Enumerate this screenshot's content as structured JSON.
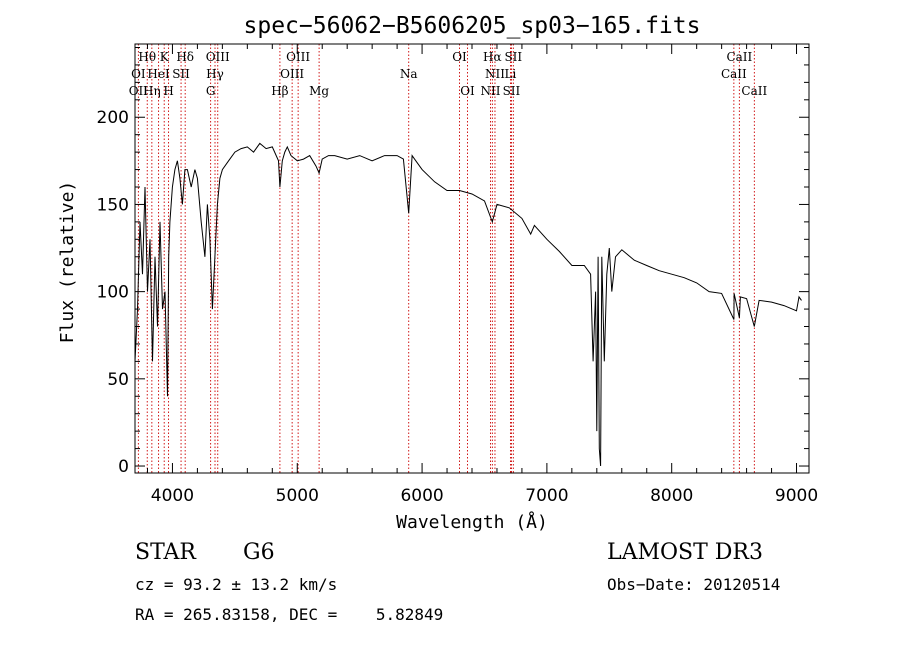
{
  "chart_data": {
    "type": "line",
    "title": "spec−56062−B5606205_sp03−165.fits",
    "xlabel": "Wavelength (Å)",
    "ylabel": "Flux (relative)",
    "xlim": [
      3700,
      9100
    ],
    "ylim": [
      -4,
      242
    ],
    "xticks": [
      4000,
      5000,
      6000,
      7000,
      8000,
      9000
    ],
    "yticks": [
      0,
      50,
      100,
      150,
      200
    ],
    "series": [
      {
        "name": "flux",
        "x": [
          3700,
          3720,
          3740,
          3760,
          3780,
          3800,
          3820,
          3840,
          3860,
          3880,
          3900,
          3920,
          3940,
          3960,
          3970,
          3980,
          4000,
          4020,
          4040,
          4060,
          4080,
          4100,
          4120,
          4150,
          4180,
          4200,
          4230,
          4260,
          4280,
          4300,
          4320,
          4340,
          4360,
          4380,
          4400,
          4450,
          4500,
          4550,
          4600,
          4650,
          4700,
          4750,
          4800,
          4850,
          4861,
          4880,
          4900,
          4920,
          4950,
          5000,
          5050,
          5100,
          5150,
          5175,
          5200,
          5250,
          5300,
          5400,
          5500,
          5600,
          5700,
          5800,
          5850,
          5893,
          5920,
          5950,
          6000,
          6100,
          6200,
          6300,
          6400,
          6500,
          6563,
          6600,
          6700,
          6800,
          6870,
          6900,
          7000,
          7100,
          7200,
          7300,
          7350,
          7370,
          7390,
          7400,
          7410,
          7420,
          7430,
          7440,
          7460,
          7480,
          7500,
          7520,
          7550,
          7600,
          7700,
          7800,
          7900,
          8000,
          8100,
          8200,
          8300,
          8400,
          8498,
          8500,
          8542,
          8550,
          8600,
          8662,
          8700,
          8800,
          8900,
          9000,
          9020,
          9040
        ],
        "values": [
          60,
          90,
          140,
          110,
          160,
          100,
          130,
          60,
          120,
          80,
          140,
          90,
          100,
          40,
          120,
          140,
          160,
          170,
          175,
          165,
          150,
          170,
          170,
          160,
          170,
          165,
          140,
          120,
          150,
          130,
          90,
          120,
          150,
          165,
          170,
          175,
          180,
          182,
          183,
          180,
          185,
          182,
          183,
          175,
          160,
          175,
          180,
          183,
          178,
          175,
          176,
          178,
          172,
          168,
          176,
          178,
          178,
          176,
          178,
          175,
          178,
          178,
          176,
          145,
          178,
          175,
          170,
          163,
          158,
          158,
          156,
          152,
          140,
          150,
          148,
          142,
          133,
          138,
          130,
          123,
          115,
          115,
          110,
          60,
          100,
          20,
          120,
          10,
          0,
          120,
          60,
          110,
          125,
          100,
          120,
          124,
          118,
          115,
          112,
          110,
          108,
          105,
          100,
          99,
          84,
          99,
          85,
          97,
          96,
          80,
          95,
          94,
          92,
          89,
          97,
          95
        ]
      }
    ],
    "line_labels": [
      {
        "label": "Hθ",
        "x": 3798
      },
      {
        "label": "K",
        "x": 3934
      },
      {
        "label": "Hδ",
        "x": 4102
      },
      {
        "label": "OIII",
        "x": 4363
      },
      {
        "label": "OIII",
        "x": 5007
      },
      {
        "label": "OI",
        "x": 6300
      },
      {
        "label": "Hα",
        "x": 6563
      },
      {
        "label": "SII",
        "x": 6731
      },
      {
        "label": "CaII",
        "x": 8542
      },
      {
        "label": "OI",
        "x": 3727
      },
      {
        "label": "HeI",
        "x": 3889
      },
      {
        "label": "SII",
        "x": 4069
      },
      {
        "label": "Hγ",
        "x": 4341
      },
      {
        "label": "OIII",
        "x": 4959
      },
      {
        "label": "Na",
        "x": 5893
      },
      {
        "label": "NII",
        "x": 6584
      },
      {
        "label": "Li",
        "x": 6708
      },
      {
        "label": "CaII",
        "x": 8498
      },
      {
        "label": "OII",
        "x": 3727
      },
      {
        "label": "Hη",
        "x": 3835
      },
      {
        "label": "H",
        "x": 3969
      },
      {
        "label": "G",
        "x": 4306
      },
      {
        "label": "Hβ",
        "x": 4861
      },
      {
        "label": "Mg",
        "x": 5175
      },
      {
        "label": "OI",
        "x": 6364
      },
      {
        "label": "NII",
        "x": 6548
      },
      {
        "label": "SII",
        "x": 6716
      },
      {
        "label": "CaII",
        "x": 8662
      }
    ],
    "marker_lines_x": [
      3727,
      3798,
      3835,
      3889,
      3934,
      3969,
      4069,
      4102,
      4306,
      4341,
      4363,
      4861,
      4959,
      5007,
      5175,
      5893,
      6300,
      6364,
      6548,
      6563,
      6584,
      6708,
      6716,
      6731,
      8498,
      8542,
      8662
    ]
  },
  "info": {
    "object_class": "STAR",
    "subclass": "G6",
    "survey": "LAMOST DR3",
    "cz": "cz = 93.2 ± 13.2 km/s",
    "obs_date": "Obs−Date: 20120514",
    "coords": "RA = 265.83158, DEC =    5.82849"
  },
  "colors": {
    "spectrum": "#000000",
    "marker_lines": "#cc0000",
    "axis": "#000000"
  }
}
